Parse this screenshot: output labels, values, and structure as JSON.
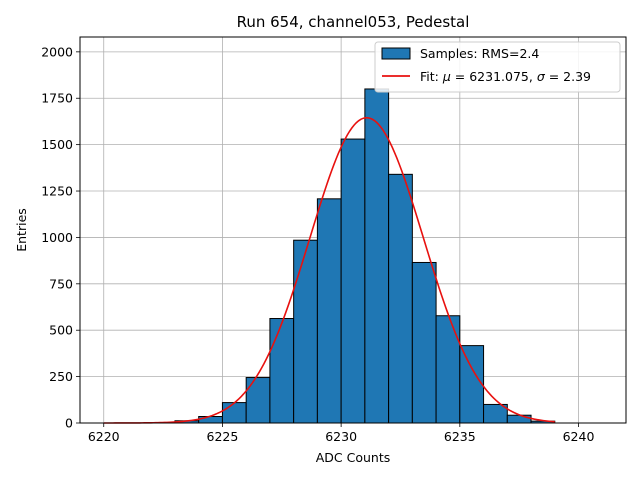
{
  "chart_data": {
    "type": "bar",
    "title": "Run 654, channel053, Pedestal",
    "xlabel": "ADC Counts",
    "ylabel": "Entries",
    "xlim": [
      6219.0,
      6242.0
    ],
    "ylim": [
      0,
      2080
    ],
    "grid": true,
    "legend_position": "top-right",
    "x_ticks": [
      6220,
      6225,
      6230,
      6235,
      6240
    ],
    "y_ticks": [
      0,
      250,
      500,
      750,
      1000,
      1250,
      1500,
      1750,
      2000
    ],
    "x_tick_labels": [
      "6220",
      "6225",
      "6230",
      "6235",
      "6240"
    ],
    "y_tick_labels": [
      "0",
      "250",
      "500",
      "750",
      "1000",
      "1250",
      "1500",
      "1750",
      "2000"
    ],
    "bin_width": 1,
    "histogram": {
      "name": "Samples: RMS=2.4",
      "color": "#1f77b4",
      "bins": [
        {
          "x0": 6222,
          "value": 2
        },
        {
          "x0": 6223,
          "value": 12
        },
        {
          "x0": 6224,
          "value": 35
        },
        {
          "x0": 6225,
          "value": 110
        },
        {
          "x0": 6226,
          "value": 245
        },
        {
          "x0": 6227,
          "value": 563
        },
        {
          "x0": 6228,
          "value": 985
        },
        {
          "x0": 6229,
          "value": 1208
        },
        {
          "x0": 6230,
          "value": 1530
        },
        {
          "x0": 6231,
          "value": 1800
        },
        {
          "x0": 6232,
          "value": 1340
        },
        {
          "x0": 6233,
          "value": 865
        },
        {
          "x0": 6234,
          "value": 578
        },
        {
          "x0": 6235,
          "value": 417
        },
        {
          "x0": 6236,
          "value": 100
        },
        {
          "x0": 6237,
          "value": 42
        },
        {
          "x0": 6238,
          "value": 10
        }
      ]
    },
    "fit": {
      "name": "Fit: μ = 6231.075, σ = 2.39",
      "color": "#e8110f",
      "mu": 6231.075,
      "sigma": 2.39,
      "amplitude": 1645,
      "x_range": [
        6220,
        6239
      ]
    },
    "legend": {
      "samples_label_prefix": "Samples: RMS=",
      "samples_label_value": "2.4",
      "fit_label_prefix": "Fit: ",
      "fit_mu_symbol": "μ",
      "fit_mu_text": " = 6231.075, ",
      "fit_sigma_symbol": "σ",
      "fit_sigma_text": " = 2.39"
    }
  }
}
